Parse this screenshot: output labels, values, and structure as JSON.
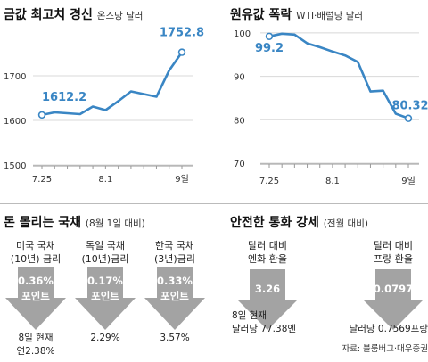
{
  "chart_data": [
    {
      "type": "line",
      "title": "금값 최고치 경신",
      "subtitle": "온스당 달러",
      "x": [
        "7.25",
        "7.26",
        "7.29",
        "7.30",
        "7.31",
        "8.1",
        "8.2",
        "8.5",
        "8.6",
        "8.7",
        "8.8",
        "8.9"
      ],
      "xticks": [
        "7.25",
        "8.1",
        "9일"
      ],
      "series": [
        {
          "values": [
            1612.2,
            1618,
            1616,
            1614,
            1631,
            1623,
            1643,
            1665,
            1659,
            1653,
            1712,
            1752.8
          ]
        }
      ],
      "data_labels": [
        "1612.2",
        "1752.8"
      ],
      "ylim": [
        1500,
        1800
      ],
      "yticks": [
        1500,
        1600,
        1700
      ],
      "accent_color": "#3a86c4",
      "grid": true
    },
    {
      "type": "line",
      "title": "원유값 폭락",
      "subtitle": "WTI·배럴당 달러",
      "x": [
        "7.25",
        "7.26",
        "7.29",
        "7.30",
        "7.31",
        "8.1",
        "8.2",
        "8.5",
        "8.6",
        "8.7",
        "8.8",
        "8.9"
      ],
      "xticks": [
        "7.25",
        "8.1",
        "9일"
      ],
      "series": [
        {
          "values": [
            99.2,
            99.8,
            99.6,
            97.6,
            96.7,
            95.7,
            94.8,
            93.3,
            86.5,
            86.7,
            81.4,
            80.32
          ]
        }
      ],
      "data_labels": [
        "99.2",
        "80.32"
      ],
      "ylim": [
        70,
        101
      ],
      "yticks": [
        70,
        80,
        90,
        100
      ],
      "accent_color": "#3a86c4",
      "grid": true
    }
  ],
  "bonds": {
    "title": "돈 몰리는 국채",
    "subtitle": "(8월 1일 대비)",
    "items": [
      {
        "label1": "미국 국채",
        "label2": "(10년) 금리",
        "change": "0.36%",
        "unit": "포인트",
        "value1": "8일 현재",
        "value2": "연2.38%"
      },
      {
        "label1": "독일 국채",
        "label2": "(10년)금리",
        "change": "0.17%",
        "unit": "포인트",
        "value1": "2.29%",
        "value2": ""
      },
      {
        "label1": "한국 국채",
        "label2": "(3년)금리",
        "change": "0.33%",
        "unit": "포인트",
        "value1": "3.57%",
        "value2": ""
      }
    ]
  },
  "currency": {
    "title": "안전한 통화 강세",
    "subtitle": "(전월 대비)",
    "items": [
      {
        "label1": "달러 대비",
        "label2": "엔화 환율",
        "change": "3.26",
        "value1": "8일 현재",
        "value2": "달러당 77.38엔"
      },
      {
        "label1": "달러 대비",
        "label2": "프랑 환율",
        "change": "0.0797",
        "value1": "달러당 0.7569프랑",
        "value2": ""
      }
    ],
    "source": "자료: 블룸버그·대우증권"
  },
  "colors": {
    "arrow": "#a3a3a3",
    "arrow_light": "#d6d6d6",
    "grid": "#d8d8d8"
  }
}
